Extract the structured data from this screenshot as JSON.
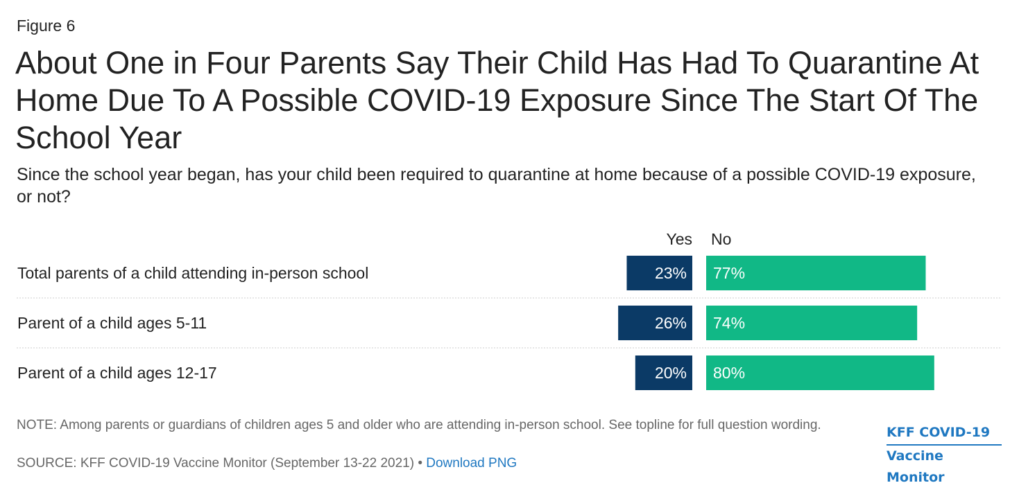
{
  "figure_label": "Figure 6",
  "title": "About One in Four Parents Say Their Child Has Had To Quarantine At Home Due To A Possible COVID-19 Exposure Since The Start Of The School Year",
  "subtitle": "Since the school year began, has your child been required to quarantine at home because of a possible COVID-19 exposure, or not?",
  "note": "NOTE: Among parents or guardians of children ages 5 and older who are attending in-person school. See topline for full question wording.",
  "source": {
    "text": "SOURCE: KFF COVID-19 Vaccine Monitor (September 13-22 2021) •",
    "link": "Download PNG"
  },
  "brand": {
    "line1": "KFF COVID-19",
    "line2": "Vaccine Monitor"
  },
  "colors": {
    "yes": "#0b3a66",
    "no": "#11b886",
    "text": "#222222",
    "divider": "#cccccc"
  },
  "chart_data": {
    "type": "bar",
    "orientation": "horizontal-diverging",
    "categories": [
      "Total parents of a child attending in-person school",
      "Parent of a child ages 5-11",
      "Parent of a child ages 12-17"
    ],
    "series": [
      {
        "name": "Yes",
        "values": [
          23,
          26,
          20
        ]
      },
      {
        "name": "No",
        "values": [
          77,
          74,
          80
        ]
      }
    ],
    "unit": "%",
    "legend_position": "top"
  }
}
